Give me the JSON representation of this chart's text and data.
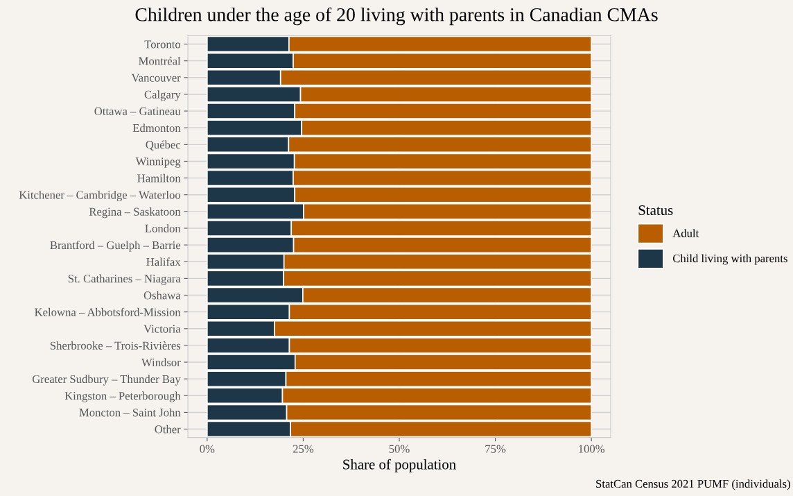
{
  "chart_data": {
    "type": "bar",
    "orientation": "horizontal",
    "stacked": true,
    "title": "Children under the age of 20 living with parents in Canadian CMAs",
    "xlabel": "Share of population",
    "legend_title": "Status",
    "legend": "right",
    "grid": true,
    "annotations": [
      "StatCan Census 2021 PUMF (individuals)"
    ],
    "categories": [
      "Toronto",
      "Montréal",
      "Vancouver",
      "Calgary",
      "Ottawa – Gatineau",
      "Edmonton",
      "Québec",
      "Winnipeg",
      "Hamilton",
      "Kitchener – Cambridge – Waterloo",
      "Regina – Saskatoon",
      "London",
      "Brantford – Guelph – Barrie",
      "Halifax",
      "St. Catharines – Niagara",
      "Oshawa",
      "Kelowna – Abbotsford-Mission",
      "Victoria",
      "Sherbrooke – Trois-Rivières",
      "Windsor",
      "Greater Sudbury – Thunder Bay",
      "Kingston – Peterborough",
      "Moncton – Saint John",
      "Other"
    ],
    "series": [
      {
        "name": "Child living with parents",
        "color": "#1d3748",
        "values": [
          21.3,
          22.4,
          19.1,
          24.3,
          22.8,
          24.6,
          21.2,
          22.7,
          22.4,
          22.8,
          25.1,
          21.9,
          22.5,
          20.0,
          19.9,
          24.9,
          21.4,
          17.5,
          21.4,
          22.9,
          20.5,
          19.6,
          20.7,
          21.7
        ]
      },
      {
        "name": "Adult",
        "color": "#b85e00",
        "values": [
          78.7,
          77.6,
          80.9,
          75.7,
          77.2,
          75.4,
          78.8,
          77.3,
          77.6,
          77.2,
          74.9,
          78.1,
          77.5,
          80.0,
          80.1,
          75.1,
          78.6,
          82.5,
          78.6,
          77.1,
          79.5,
          80.4,
          79.3,
          78.3
        ]
      }
    ],
    "xlim": [
      -5,
      105
    ],
    "xticks": [
      {
        "value": 0,
        "label": "0%"
      },
      {
        "value": 25,
        "label": "25%"
      },
      {
        "value": 50,
        "label": "50%"
      },
      {
        "value": 75,
        "label": "75%"
      },
      {
        "value": 100,
        "label": "100%"
      }
    ]
  }
}
